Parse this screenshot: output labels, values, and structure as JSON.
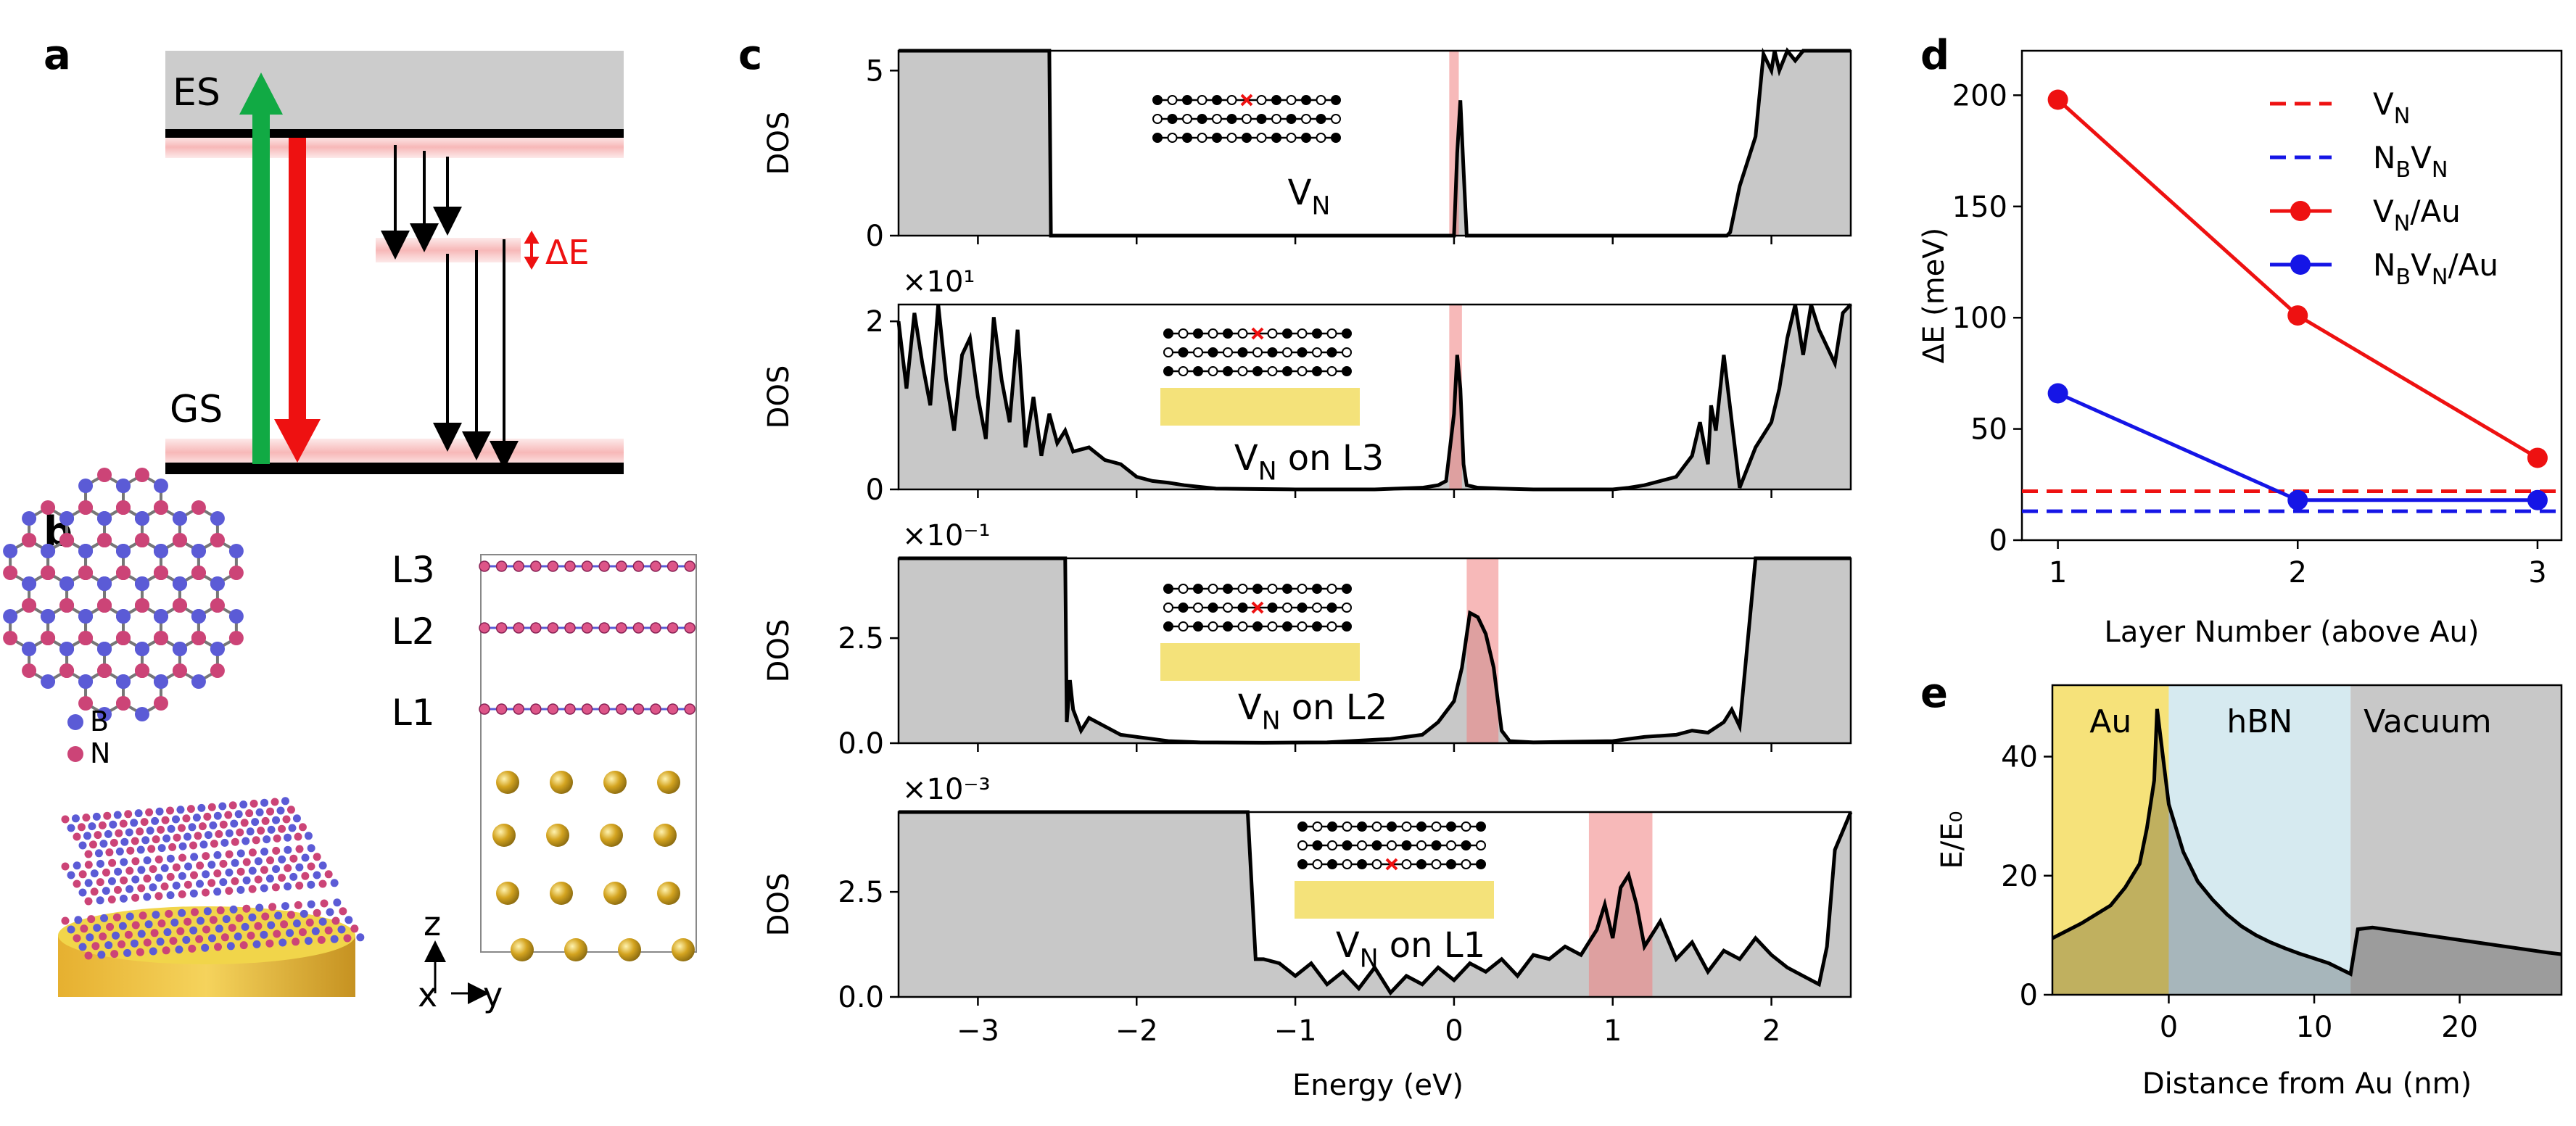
{
  "panel_labels": {
    "a": "a",
    "b": "b",
    "c": "c",
    "d": "d",
    "e": "e"
  },
  "colors": {
    "red": "#ee1111",
    "green": "#11aa44",
    "blue": "#1515e6",
    "gray": "#c8c8c8",
    "gold": "#f4e27a",
    "pink": "#f7b8b8",
    "lightblue": "#d6eaf0",
    "boron": "#5b5bd6",
    "nitrogen": "#cc4477"
  },
  "panel_a": {
    "es_label": "ES",
    "gs_label": "GS",
    "delta_label": "ΔE"
  },
  "panel_b": {
    "legend": {
      "boron": "B",
      "nitrogen": "N"
    },
    "layers": [
      "L3",
      "L2",
      "L1"
    ],
    "axes": {
      "z": "z",
      "x": "x",
      "y": "y"
    }
  },
  "chart_data": [
    {
      "type": "line",
      "panel": "c1",
      "title": "V_N",
      "ylabel": "DOS",
      "scale_label": "",
      "xlim": [
        -3.5,
        2.5
      ],
      "ylim": [
        0,
        5.6
      ],
      "yticks": [
        "0",
        "5"
      ],
      "highlight": [
        -0.03,
        0.03
      ],
      "gap": [
        -2.55,
        1.75
      ],
      "x": [
        -3.5,
        -2.6,
        -2.55,
        -2.54,
        0.0,
        0.02,
        0.04,
        0.06,
        0.08,
        1.72,
        1.74,
        1.8,
        1.9,
        1.95,
        2.0,
        2.02,
        2.05,
        2.1,
        2.15,
        2.2,
        2.5
      ],
      "y": [
        5.6,
        5.6,
        5.6,
        0,
        0,
        2.5,
        4.1,
        2.0,
        0,
        0,
        0.1,
        1.5,
        3.0,
        5.5,
        5.0,
        5.6,
        5.0,
        5.6,
        5.3,
        5.6,
        5.6
      ]
    },
    {
      "type": "line",
      "panel": "c2",
      "title": "V_N on L3",
      "ylabel": "DOS",
      "scale_label": "×10¹",
      "xlim": [
        -3.5,
        2.5
      ],
      "ylim": [
        0,
        2.2
      ],
      "yticks": [
        "0",
        "2"
      ],
      "highlight": [
        -0.03,
        0.05
      ],
      "x": [
        -3.5,
        -3.45,
        -3.4,
        -3.35,
        -3.3,
        -3.25,
        -3.2,
        -3.15,
        -3.1,
        -3.05,
        -3.0,
        -2.95,
        -2.9,
        -2.85,
        -2.8,
        -2.75,
        -2.7,
        -2.65,
        -2.6,
        -2.55,
        -2.5,
        -2.45,
        -2.4,
        -2.3,
        -2.2,
        -2.1,
        -2.0,
        -1.9,
        -1.8,
        -1.7,
        -1.5,
        -1.0,
        -0.5,
        -0.2,
        -0.1,
        -0.05,
        0.0,
        0.02,
        0.04,
        0.06,
        0.08,
        0.15,
        0.3,
        0.5,
        1.0,
        1.1,
        1.2,
        1.4,
        1.5,
        1.55,
        1.6,
        1.62,
        1.65,
        1.7,
        1.8,
        1.9,
        2.0,
        2.05,
        2.1,
        2.15,
        2.2,
        2.25,
        2.3,
        2.35,
        2.4,
        2.45,
        2.5
      ],
      "y": [
        2.0,
        1.2,
        2.1,
        1.5,
        1.0,
        2.2,
        1.3,
        0.7,
        1.6,
        1.8,
        1.1,
        0.6,
        2.05,
        1.3,
        0.8,
        1.9,
        0.5,
        1.1,
        0.4,
        0.9,
        0.55,
        0.7,
        0.45,
        0.5,
        0.35,
        0.3,
        0.15,
        0.1,
        0.08,
        0.05,
        0.01,
        0,
        0,
        0.02,
        0.05,
        0.1,
        0.9,
        1.6,
        1.2,
        0.3,
        0.05,
        0.02,
        0.01,
        0,
        0,
        0.02,
        0.05,
        0.15,
        0.4,
        0.8,
        0.3,
        1.0,
        0.7,
        1.6,
        0.02,
        0.5,
        0.8,
        1.2,
        1.8,
        2.2,
        1.6,
        2.2,
        1.9,
        1.7,
        1.5,
        2.1,
        2.2
      ]
    },
    {
      "type": "line",
      "panel": "c3",
      "title": "V_N on L2",
      "ylabel": "DOS",
      "scale_label": "×10⁻¹",
      "xlim": [
        -3.5,
        2.5
      ],
      "ylim": [
        0,
        4.4
      ],
      "yticks": [
        "0.0",
        "2.5"
      ],
      "highlight": [
        0.08,
        0.28
      ],
      "x": [
        -3.5,
        -2.5,
        -2.45,
        -2.44,
        -2.42,
        -2.4,
        -2.35,
        -2.3,
        -2.2,
        -2.1,
        -2.0,
        -1.9,
        -1.8,
        -1.6,
        -1.2,
        -0.8,
        -0.4,
        -0.2,
        -0.1,
        0.0,
        0.05,
        0.1,
        0.15,
        0.2,
        0.25,
        0.3,
        0.35,
        0.5,
        1.0,
        1.2,
        1.4,
        1.5,
        1.6,
        1.7,
        1.75,
        1.8,
        1.9,
        2.0,
        2.5
      ],
      "y": [
        4.4,
        4.4,
        4.4,
        0.5,
        1.5,
        0.8,
        0.3,
        0.6,
        0.4,
        0.2,
        0.15,
        0.1,
        0.05,
        0.02,
        0.01,
        0.02,
        0.1,
        0.2,
        0.5,
        1.0,
        1.8,
        3.1,
        3.0,
        2.6,
        1.8,
        0.3,
        0.05,
        0.02,
        0.05,
        0.15,
        0.2,
        0.3,
        0.25,
        0.5,
        0.8,
        0.4,
        4.4,
        4.4,
        4.4
      ]
    },
    {
      "type": "line",
      "panel": "c4",
      "title": "V_N on L1",
      "ylabel": "DOS",
      "scale_label": "×10⁻³",
      "xlim": [
        -3.5,
        2.5
      ],
      "ylim": [
        0,
        4.4
      ],
      "yticks": [
        "0.0",
        "2.5"
      ],
      "highlight": [
        0.85,
        1.25
      ],
      "x": [
        -3.5,
        -1.3,
        -1.25,
        -1.2,
        -1.1,
        -1.0,
        -0.9,
        -0.8,
        -0.7,
        -0.6,
        -0.5,
        -0.4,
        -0.3,
        -0.2,
        -0.1,
        0.0,
        0.1,
        0.2,
        0.3,
        0.4,
        0.5,
        0.6,
        0.7,
        0.8,
        0.9,
        0.95,
        1.0,
        1.05,
        1.1,
        1.15,
        1.2,
        1.3,
        1.4,
        1.5,
        1.6,
        1.7,
        1.8,
        1.9,
        2.0,
        2.1,
        2.2,
        2.3,
        2.35,
        2.4,
        2.5
      ],
      "y": [
        4.4,
        4.4,
        0.9,
        0.9,
        0.8,
        0.5,
        0.8,
        0.3,
        0.6,
        0.2,
        0.7,
        0.1,
        0.5,
        0.3,
        0.7,
        0.4,
        0.8,
        0.6,
        0.9,
        0.5,
        1.0,
        0.9,
        1.2,
        1.0,
        1.6,
        2.2,
        1.4,
        2.6,
        2.9,
        2.2,
        1.2,
        1.8,
        0.9,
        1.3,
        0.6,
        1.1,
        0.9,
        1.4,
        1.0,
        0.7,
        0.5,
        0.3,
        1.2,
        3.5,
        4.4
      ]
    },
    {
      "type": "line",
      "panel": "d",
      "xlabel": "Layer Number (above Au)",
      "ylabel": "ΔE (meV)",
      "xlim": [
        0.85,
        3.1
      ],
      "ylim": [
        0,
        220
      ],
      "xticks": [
        "1",
        "2",
        "3"
      ],
      "yticks": [
        "0",
        "50",
        "100",
        "150",
        "200"
      ],
      "categories": [
        1,
        2,
        3
      ],
      "series": [
        {
          "name": "V_N",
          "dash": true,
          "color": "red",
          "values": [
            22,
            22,
            22
          ]
        },
        {
          "name": "N_BV_N",
          "dash": true,
          "color": "blue",
          "values": [
            13,
            13,
            13
          ]
        },
        {
          "name": "V_N/Au",
          "color": "red",
          "values": [
            198,
            101,
            37
          ]
        },
        {
          "name": "N_BV_N/Au",
          "color": "blue",
          "values": [
            66,
            18,
            18
          ]
        }
      ]
    },
    {
      "type": "area",
      "panel": "e",
      "xlabel": "Distance from Au (nm)",
      "ylabel": "E/E₀",
      "xlim": [
        -8,
        27
      ],
      "ylim": [
        0,
        52
      ],
      "xticks": [
        "0",
        "10",
        "20"
      ],
      "yticks": [
        "0",
        "20",
        "40"
      ],
      "regions": [
        "Au",
        "hBN",
        "Vacuum"
      ],
      "x": [
        -8,
        -6,
        -4,
        -3,
        -2,
        -1.5,
        -1,
        -0.8,
        -0.5,
        -0.3,
        0,
        0.5,
        1,
        2,
        3,
        4,
        5,
        6,
        7,
        8,
        9,
        10,
        11,
        12,
        12.5,
        13,
        14,
        16,
        18,
        20,
        22,
        24,
        26,
        27
      ],
      "y": [
        9.5,
        12,
        15,
        18,
        22,
        28,
        36,
        48,
        42,
        38,
        32,
        28,
        24,
        19,
        16,
        13.5,
        11.5,
        10,
        8.8,
        7.8,
        6.9,
        6.1,
        5.3,
        4.1,
        3.5,
        11,
        11.3,
        10.6,
        9.9,
        9.2,
        8.5,
        7.8,
        7.1,
        6.8
      ]
    }
  ]
}
